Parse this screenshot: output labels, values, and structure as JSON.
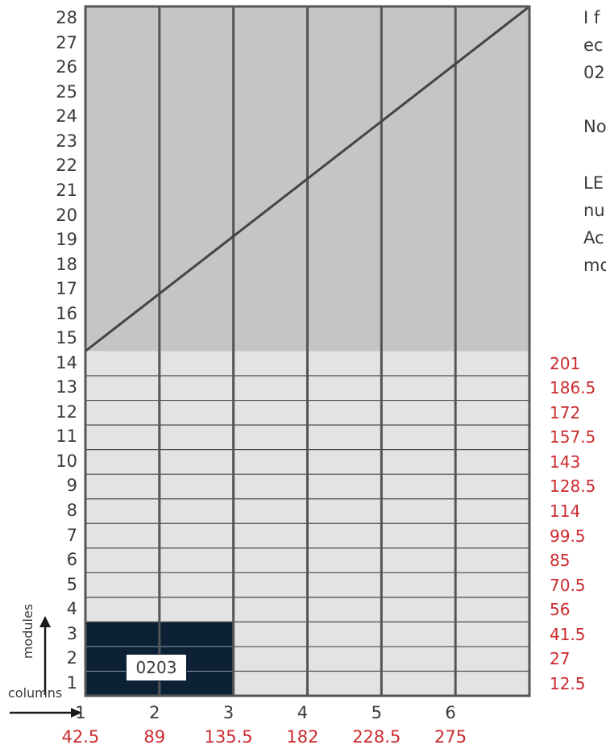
{
  "colors": {
    "upper_fill": "#c4c5c7",
    "lower_fill": "#e2e3e5",
    "module_fill": "#0c2136",
    "grid_line": "#555555",
    "mm_text": "#cc2a2f"
  },
  "rows": {
    "labels": [
      "1",
      "2",
      "3",
      "4",
      "5",
      "6",
      "7",
      "8",
      "9",
      "10",
      "11",
      "12",
      "13",
      "14",
      "15",
      "16",
      "17",
      "18",
      "19",
      "20",
      "21",
      "22",
      "23",
      "24",
      "25",
      "26",
      "27",
      "28"
    ],
    "mm_values": [
      "12.5",
      "27",
      "41.5",
      "56",
      "70.5",
      "85",
      "99.5",
      "114",
      "128.5",
      "143",
      "157.5",
      "172",
      "186.5",
      "201"
    ]
  },
  "columns": {
    "labels": [
      "1",
      "2",
      "3",
      "4",
      "5",
      "6"
    ],
    "mm_values": [
      "42.5",
      "89",
      "135.5",
      "182",
      "228.5",
      "275"
    ]
  },
  "axes": {
    "rows_caption": "modules",
    "columns_caption": "columns"
  },
  "module_block": {
    "label": "0203",
    "columns_spanned": 2,
    "rows_spanned": 3
  },
  "side_text": [
    "I f",
    "ec",
    "02",
    "No",
    "LE",
    "nu",
    "Ac",
    "mo"
  ]
}
